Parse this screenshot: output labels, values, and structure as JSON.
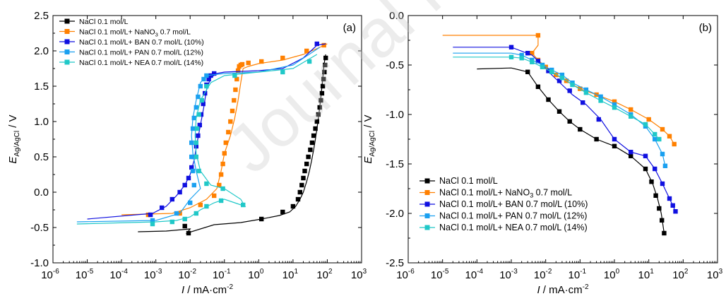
{
  "watermark": "Journal Pre-proof",
  "chart_data": [
    {
      "type": "line",
      "panel_label": "(a)",
      "xlabel_main": "I",
      "xlabel_unit": "/ mA·cm",
      "xlabel_exp": "-2",
      "ylabel_main": "E",
      "ylabel_sub": "Ag/AgCl",
      "ylabel_unit": " / V",
      "xscale": "log",
      "xlim": [
        1e-06,
        1000
      ],
      "ylim": [
        -1.0,
        2.5
      ],
      "xtick_exponents": [
        -6,
        -5,
        -4,
        -3,
        -2,
        -1,
        0,
        1,
        2,
        3
      ],
      "yticks": [
        "-1.0",
        "-0.5",
        "0.0",
        "0.5",
        "1.0",
        "1.5",
        "2.0",
        "2.5"
      ],
      "ytick_values": [
        -1.0,
        -0.5,
        0.0,
        0.5,
        1.0,
        1.5,
        2.0,
        2.5
      ],
      "legend_position": "top-left",
      "series": [
        {
          "name": "NaCl 0.1 mol/L",
          "name_parts": [
            "NaCl 0.1 mol/L"
          ],
          "color": "#000000",
          "x": [
            0.0003,
            0.002,
            0.01,
            0.008,
            0.05,
            0.3,
            1.2,
            4,
            8,
            12,
            16,
            20,
            25,
            30,
            35,
            40,
            45,
            50,
            55,
            60,
            65,
            70,
            75,
            80,
            90
          ],
          "y": [
            -0.56,
            -0.55,
            -0.52,
            -0.58,
            -0.46,
            -0.43,
            -0.38,
            -0.33,
            -0.28,
            -0.2,
            -0.1,
            0.0,
            0.15,
            0.3,
            0.45,
            0.6,
            0.75,
            0.9,
            1.05,
            1.2,
            1.35,
            1.5,
            1.65,
            1.8,
            1.95
          ],
          "marker_y": [
            -0.58,
            -0.48,
            -0.38,
            -0.28,
            -0.2,
            -0.1,
            0.0,
            0.1,
            0.2,
            0.3,
            0.4,
            0.5,
            0.6,
            0.7,
            0.8,
            0.9,
            1.0,
            1.1,
            1.2,
            1.3,
            1.4,
            1.5,
            1.6,
            1.7,
            1.8,
            1.9
          ],
          "marker_x": [
            0.009,
            0.007,
            1.2,
            5,
            10,
            14,
            16,
            18,
            20,
            22,
            25,
            28,
            32,
            36,
            40,
            45,
            50,
            55,
            60,
            65,
            70,
            74,
            78,
            82,
            86,
            90
          ]
        },
        {
          "name": "NaCl 0.1 mol/L+ NaNO3 0.7 mol/L",
          "name_parts": [
            "NaCl 0.1 mol/L+ NaNO",
            "3",
            " 0.7 mol/L"
          ],
          "color": "#ff8000",
          "x": [
            0.0001,
            0.003,
            0.01,
            0.03,
            0.06,
            0.08,
            0.1,
            0.15,
            0.2,
            0.25,
            0.3,
            0.35,
            0.5,
            1,
            5,
            20,
            60,
            100
          ],
          "y": [
            -0.32,
            -0.3,
            -0.22,
            -0.1,
            0.05,
            0.3,
            0.55,
            0.8,
            1.05,
            1.3,
            1.55,
            1.75,
            1.78,
            1.82,
            1.87,
            1.95,
            2.05,
            2.1
          ],
          "marker_x": [
            0.0006,
            0.005,
            0.02,
            0.05,
            0.07,
            0.08,
            0.09,
            0.1,
            0.11,
            0.13,
            0.15,
            0.17,
            0.19,
            0.21,
            0.23,
            0.25,
            0.27,
            0.3,
            0.33,
            0.5,
            1.2,
            5,
            25,
            80
          ],
          "marker_y": [
            -0.32,
            -0.3,
            -0.18,
            -0.05,
            0.1,
            0.25,
            0.4,
            0.55,
            0.7,
            0.85,
            1.0,
            1.15,
            1.3,
            1.45,
            1.6,
            1.72,
            1.78,
            1.8,
            1.81,
            1.83,
            1.85,
            1.9,
            2.0,
            2.08
          ]
        },
        {
          "name": "NaCl 0.1 mol/L+ BAN 0.7 mol/L (10%)",
          "name_parts": [
            "NaCl 0.1 mol/L+ BAN 0.7 mol/L (10%)"
          ],
          "color": "#1010e0",
          "x": [
            1e-05,
            0.0008,
            0.002,
            0.004,
            0.007,
            0.01,
            0.013,
            0.016,
            0.02,
            0.025,
            0.03,
            0.04,
            0.06,
            0.1,
            1,
            5,
            20,
            50,
            90
          ],
          "y": [
            -0.38,
            -0.3,
            -0.2,
            -0.05,
            0.1,
            0.25,
            0.45,
            0.7,
            0.95,
            1.2,
            1.45,
            1.62,
            1.68,
            1.7,
            1.72,
            1.75,
            1.9,
            2.08,
            2.1
          ],
          "marker_x": [
            0.0007,
            0.0015,
            0.003,
            0.005,
            0.007,
            0.009,
            0.011,
            0.013,
            0.015,
            0.017,
            0.019,
            0.021,
            0.024,
            0.027,
            0.03,
            0.035,
            0.04,
            0.05,
            50
          ],
          "marker_y": [
            -0.32,
            -0.22,
            -0.1,
            0.0,
            0.1,
            0.2,
            0.35,
            0.5,
            0.65,
            0.8,
            0.95,
            1.1,
            1.25,
            1.4,
            1.52,
            1.6,
            1.65,
            1.68,
            2.1
          ]
        },
        {
          "name": "NaCl 0.1 mol/L+ PAN 0.7 mol/L (12%)",
          "name_parts": [
            "NaCl 0.1 mol/L+ PAN 0.7 mol/L (12%)"
          ],
          "color": "#1aa0f0",
          "x": [
            5e-06,
            0.001,
            0.005,
            0.01,
            0.02,
            0.015,
            0.012,
            0.011,
            0.012,
            0.015,
            0.02,
            0.03,
            0.1,
            1,
            10,
            60
          ],
          "y": [
            -0.42,
            -0.4,
            -0.3,
            -0.1,
            0.05,
            0.3,
            0.55,
            0.8,
            1.05,
            1.3,
            1.55,
            1.65,
            1.68,
            1.7,
            1.8,
            2.05
          ],
          "marker_x": [
            0.0008,
            0.004,
            0.01,
            0.013,
            0.012,
            0.011,
            0.011,
            0.012,
            0.013,
            0.015,
            0.017,
            0.02,
            0.025,
            0.03
          ],
          "marker_y": [
            -0.4,
            -0.3,
            -0.15,
            0.1,
            0.3,
            0.5,
            0.7,
            0.9,
            1.05,
            1.2,
            1.35,
            1.5,
            1.6,
            1.65
          ]
        },
        {
          "name": "NaCl 0.1 mol/L+ NEA 0.7 mol/L (14%)",
          "name_parts": [
            "NaCl 0.1 mol/L+ NEA 0.7 mol/L (14%)"
          ],
          "color": "#20c8c8",
          "x": [
            5e-06,
            0.001,
            0.004,
            0.01,
            0.02,
            0.05,
            0.1,
            0.2,
            0.4,
            0.3,
            0.1,
            0.04,
            0.02,
            0.015,
            0.014,
            0.015,
            0.02,
            0.04,
            0.1,
            1,
            10,
            50
          ],
          "y": [
            -0.45,
            -0.42,
            -0.4,
            -0.35,
            -0.25,
            -0.15,
            -0.1,
            -0.15,
            -0.2,
            -0.1,
            0.05,
            0.1,
            0.3,
            0.55,
            0.8,
            1.05,
            1.3,
            1.55,
            1.65,
            1.7,
            1.75,
            1.95
          ],
          "marker_x": [
            0.0008,
            0.003,
            0.007,
            0.015,
            0.03,
            0.08,
            0.35,
            0.09,
            0.03,
            0.018,
            0.015,
            0.015,
            0.016,
            0.018,
            0.022,
            0.03,
            0.2,
            5,
            30
          ],
          "marker_y": [
            -0.45,
            -0.42,
            -0.38,
            -0.3,
            -0.2,
            -0.12,
            -0.18,
            0.05,
            0.12,
            0.3,
            0.5,
            0.7,
            0.9,
            1.1,
            1.3,
            1.5,
            1.65,
            1.7,
            1.85
          ]
        }
      ]
    },
    {
      "type": "line",
      "panel_label": "(b)",
      "xlabel_main": "I",
      "xlabel_unit": "/ mA·cm",
      "xlabel_exp": "-2",
      "ylabel_main": "E",
      "ylabel_sub": "Ag/AgCl",
      "ylabel_unit": " / V",
      "xscale": "log",
      "xlim": [
        1e-06,
        1000
      ],
      "ylim": [
        -2.5,
        0.0
      ],
      "xtick_exponents": [
        -6,
        -5,
        -4,
        -3,
        -2,
        -1,
        0,
        1,
        2,
        3
      ],
      "yticks": [
        "-2.5",
        "-2.0",
        "-1.5",
        "-1.0",
        "-0.5",
        "0.0"
      ],
      "ytick_values": [
        -2.5,
        -2.0,
        -1.5,
        -1.0,
        -0.5,
        0.0
      ],
      "legend_position": "bottom-left",
      "series": [
        {
          "name": "NaCl 0.1 mol/L",
          "name_parts": [
            "NaCl 0.1 mol/L"
          ],
          "color": "#000000",
          "x": [
            0.0001,
            0.001,
            0.003,
            0.006,
            0.012,
            0.025,
            0.05,
            0.1,
            0.3,
            1,
            3,
            8,
            13,
            18,
            23,
            28
          ],
          "y": [
            -0.54,
            -0.53,
            -0.57,
            -0.72,
            -0.85,
            -0.97,
            -1.07,
            -1.15,
            -1.25,
            -1.32,
            -1.42,
            -1.55,
            -1.7,
            -1.85,
            -2.0,
            -2.2
          ],
          "marker_x": [
            0.003,
            0.006,
            0.012,
            0.025,
            0.05,
            0.1,
            0.3,
            1,
            3,
            8,
            12,
            16,
            20,
            24,
            28
          ],
          "marker_y": [
            -0.57,
            -0.72,
            -0.85,
            -0.97,
            -1.07,
            -1.15,
            -1.25,
            -1.32,
            -1.42,
            -1.55,
            -1.68,
            -1.82,
            -1.95,
            -2.07,
            -2.2
          ]
        },
        {
          "name": "NaCl 0.1 mol/L+ NaNO3 0.7 mol/L",
          "name_parts": [
            "NaCl 0.1 mol/L+ NaNO",
            "3",
            " 0.7 mol/L"
          ],
          "color": "#ff8000",
          "x": [
            1e-05,
            0.003,
            0.006,
            0.006,
            0.004,
            0.006,
            0.01,
            0.02,
            0.04,
            0.1,
            0.3,
            1,
            3,
            10,
            25,
            40,
            55
          ],
          "y": [
            -0.2,
            -0.2,
            -0.2,
            -0.3,
            -0.38,
            -0.45,
            -0.52,
            -0.6,
            -0.66,
            -0.74,
            -0.8,
            -0.87,
            -0.95,
            -1.05,
            -1.15,
            -1.22,
            -1.3
          ],
          "marker_x": [
            0.006,
            0.004,
            0.006,
            0.01,
            0.02,
            0.04,
            0.1,
            0.3,
            1,
            3,
            10,
            25,
            40,
            55
          ],
          "marker_y": [
            -0.2,
            -0.38,
            -0.45,
            -0.52,
            -0.6,
            -0.66,
            -0.74,
            -0.8,
            -0.87,
            -0.95,
            -1.05,
            -1.15,
            -1.22,
            -1.3
          ]
        },
        {
          "name": "NaCl 0.1 mol/L+ BAN 0.7 mol/L (10%)",
          "name_parts": [
            "NaCl 0.1 mol/L+ BAN 0.7 mol/L (10%)"
          ],
          "color": "#1010e0",
          "x": [
            2e-05,
            0.001,
            0.004,
            0.008,
            0.015,
            0.03,
            0.06,
            0.15,
            0.4,
            1,
            3,
            8,
            15,
            25,
            40,
            60
          ],
          "y": [
            -0.32,
            -0.32,
            -0.4,
            -0.5,
            -0.6,
            -0.7,
            -0.8,
            -0.9,
            -1.05,
            -1.25,
            -1.38,
            -1.42,
            -1.55,
            -1.7,
            -1.85,
            -1.98
          ],
          "marker_x": [
            0.001,
            0.003,
            0.006,
            0.012,
            0.025,
            0.05,
            0.12,
            0.35,
            1,
            3,
            8,
            15,
            25,
            40,
            50,
            60
          ],
          "marker_y": [
            -0.32,
            -0.38,
            -0.46,
            -0.56,
            -0.66,
            -0.76,
            -0.88,
            -1.05,
            -1.25,
            -1.38,
            -1.42,
            -1.55,
            -1.7,
            -1.85,
            -1.92,
            -1.98
          ]
        },
        {
          "name": "NaCl 0.1 mol/L+ PAN 0.7 mol/L (12%)",
          "name_parts": [
            "NaCl 0.1 mol/L+ PAN 0.7 mol/L (12%)"
          ],
          "color": "#1aa0f0",
          "x": [
            2e-05,
            0.001,
            0.002,
            0.004,
            0.008,
            0.015,
            0.03,
            0.06,
            0.15,
            0.4,
            1,
            3,
            8,
            15,
            25,
            30
          ],
          "y": [
            -0.38,
            -0.38,
            -0.4,
            -0.45,
            -0.5,
            -0.55,
            -0.6,
            -0.68,
            -0.75,
            -0.82,
            -0.9,
            -1.0,
            -1.12,
            -1.25,
            -1.4,
            -1.52
          ],
          "marker_x": [
            0.002,
            0.004,
            0.008,
            0.015,
            0.03,
            0.06,
            0.15,
            0.4,
            1,
            3,
            8,
            15,
            25,
            30
          ],
          "marker_y": [
            -0.4,
            -0.45,
            -0.5,
            -0.55,
            -0.6,
            -0.68,
            -0.75,
            -0.82,
            -0.9,
            -1.0,
            -1.12,
            -1.25,
            -1.4,
            -1.52
          ]
        },
        {
          "name": "NaCl 0.1 mol/L+ NEA 0.7 mol/L (14%)",
          "name_parts": [
            "NaCl 0.1 mol/L+ NEA 0.7 mol/L (14%)"
          ],
          "color": "#20c8c8",
          "x": [
            2e-05,
            0.001,
            0.002,
            0.004,
            0.008,
            0.015,
            0.03,
            0.06,
            0.15,
            0.4,
            1,
            3,
            8,
            15,
            20
          ],
          "y": [
            -0.42,
            -0.42,
            -0.43,
            -0.47,
            -0.52,
            -0.57,
            -0.63,
            -0.7,
            -0.78,
            -0.86,
            -0.93,
            -1.02,
            -1.1,
            -1.2,
            -1.25
          ],
          "marker_x": [
            0.001,
            0.002,
            0.004,
            0.008,
            0.015,
            0.03,
            0.06,
            0.15,
            0.4,
            1,
            3,
            8,
            15,
            20
          ],
          "marker_y": [
            -0.42,
            -0.43,
            -0.47,
            -0.52,
            -0.57,
            -0.63,
            -0.7,
            -0.78,
            -0.86,
            -0.93,
            -1.02,
            -1.1,
            -1.2,
            -1.25
          ]
        }
      ]
    }
  ]
}
